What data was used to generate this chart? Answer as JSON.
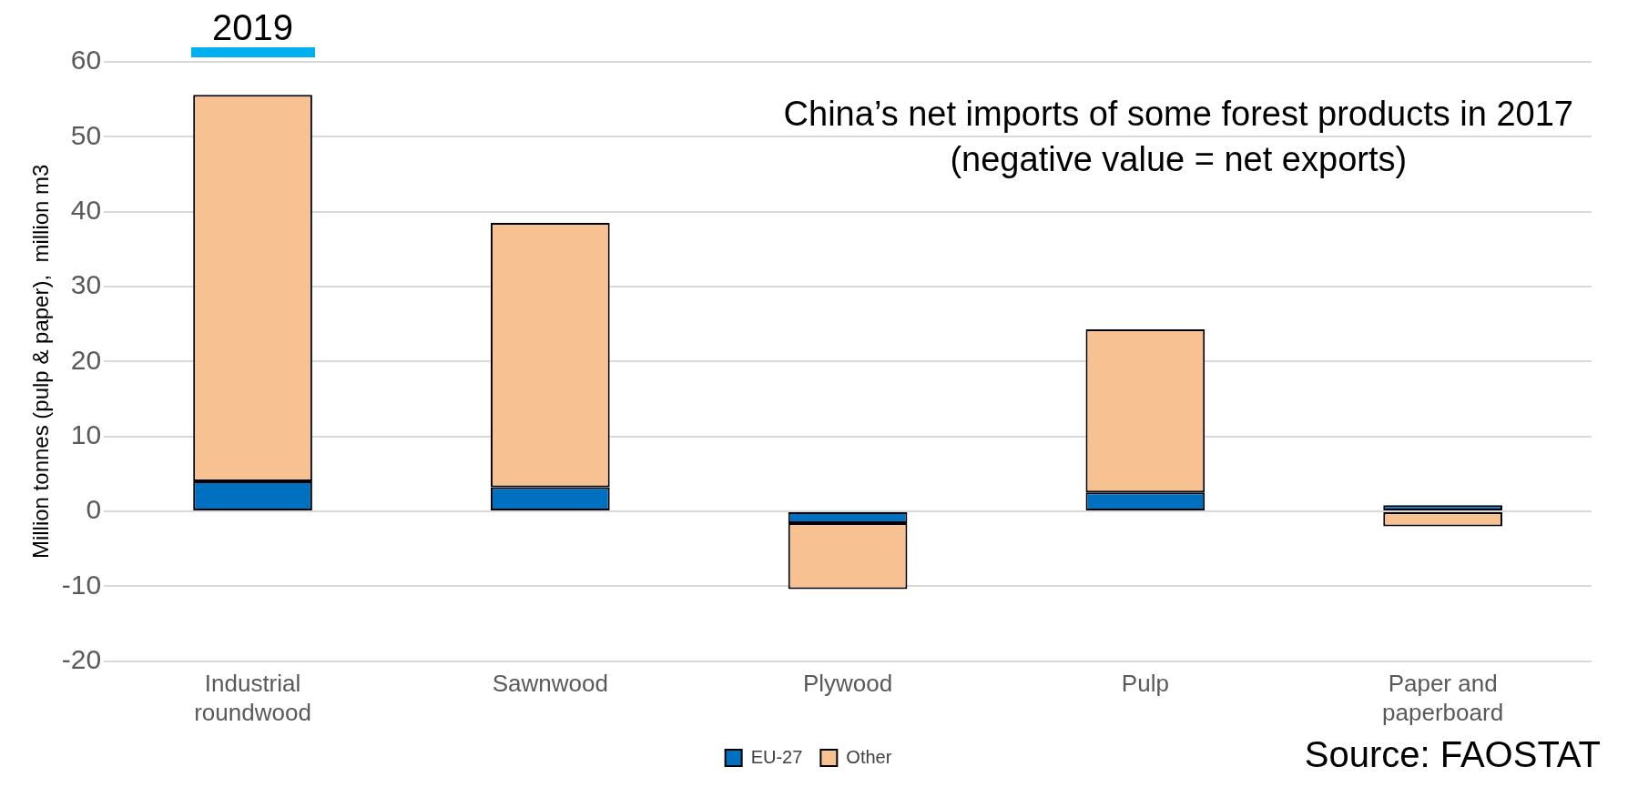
{
  "chart_data": {
    "type": "bar",
    "title": "China’s net imports of some forest products in 2017",
    "subtitle": "(negative value = net exports)",
    "ylabel": "Million tonnes (pulp & paper),  million m3",
    "categories": [
      "Industrial roundwood",
      "Sawnwood",
      "Plywood",
      "Pulp",
      "Paper and paperboard"
    ],
    "series": [
      {
        "name": "EU-27",
        "color": "#0070c0",
        "values": [
          4.0,
          3.2,
          -1.6,
          2.5,
          0.8
        ]
      },
      {
        "name": "Other",
        "color": "#f8c191",
        "values": [
          51.6,
          35.3,
          -8.8,
          21.8,
          -2.0
        ]
      }
    ],
    "stacked": true,
    "ylim": [
      -20,
      60
    ],
    "yticks": [
      -20,
      -10,
      0,
      10,
      20,
      30,
      40,
      50,
      60
    ],
    "grid": "y",
    "legend": "bottom",
    "annotations": [
      "2019",
      "Source: FAOSTAT"
    ]
  }
}
